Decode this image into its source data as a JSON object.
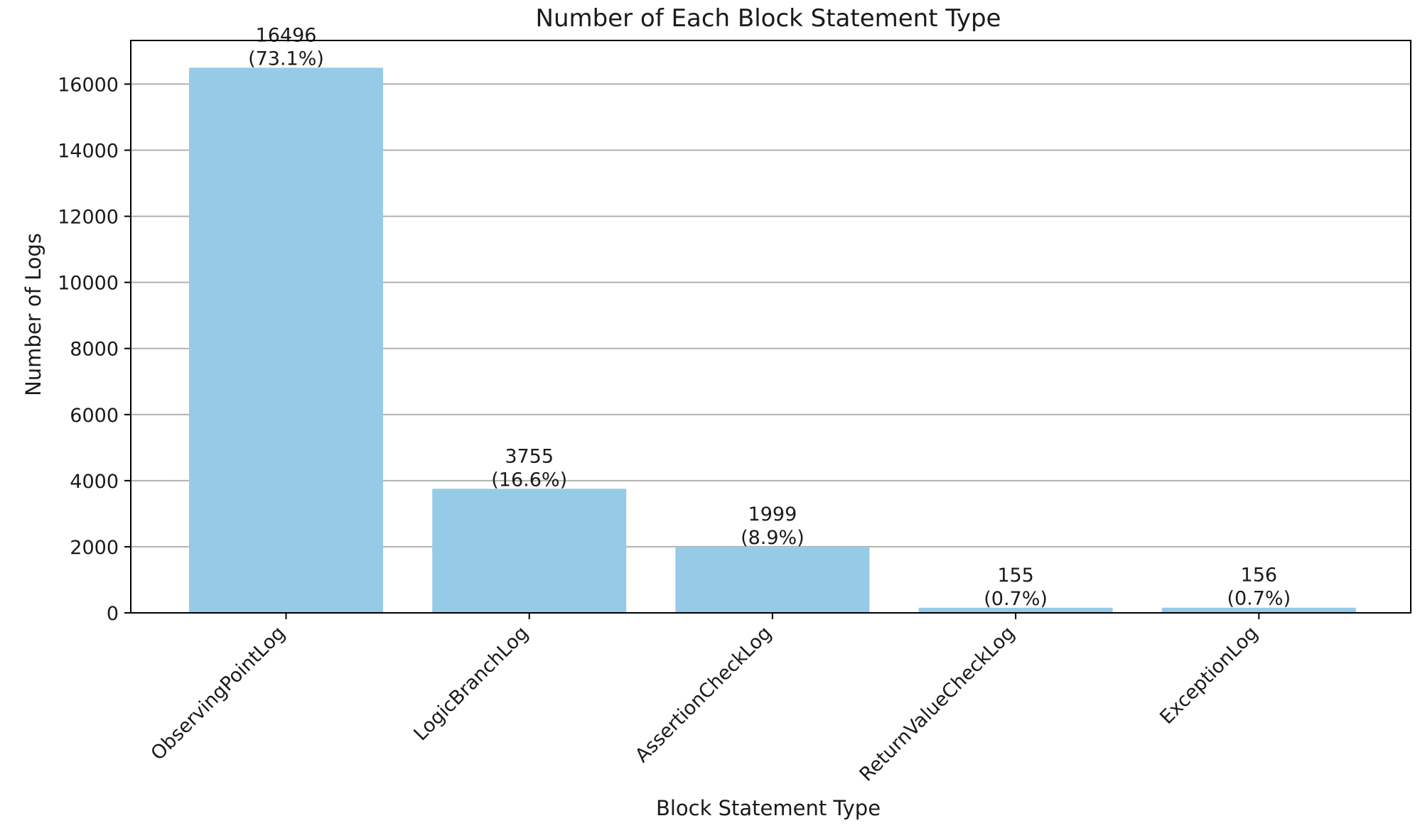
{
  "chart_data": {
    "type": "bar",
    "title": "Number of Each Block Statement Type",
    "xlabel": "Block Statement Type",
    "ylabel": "Number of Logs",
    "categories": [
      "ObservingPointLog",
      "LogicBranchLog",
      "AssertionCheckLog",
      "ReturnValueCheckLog",
      "ExceptionLog"
    ],
    "values": [
      16496,
      3755,
      1999,
      155,
      156
    ],
    "value_labels": [
      "16496",
      "3755",
      "1999",
      "155",
      "156"
    ],
    "percent_labels": [
      "(73.1%)",
      "(16.6%)",
      "(8.9%)",
      "(0.7%)",
      "(0.7%)"
    ],
    "ylim": [
      0,
      17320
    ],
    "yticks": [
      0,
      2000,
      4000,
      6000,
      8000,
      10000,
      12000,
      14000,
      16000
    ],
    "grid": "y",
    "bar_color": "#96cbe7"
  }
}
